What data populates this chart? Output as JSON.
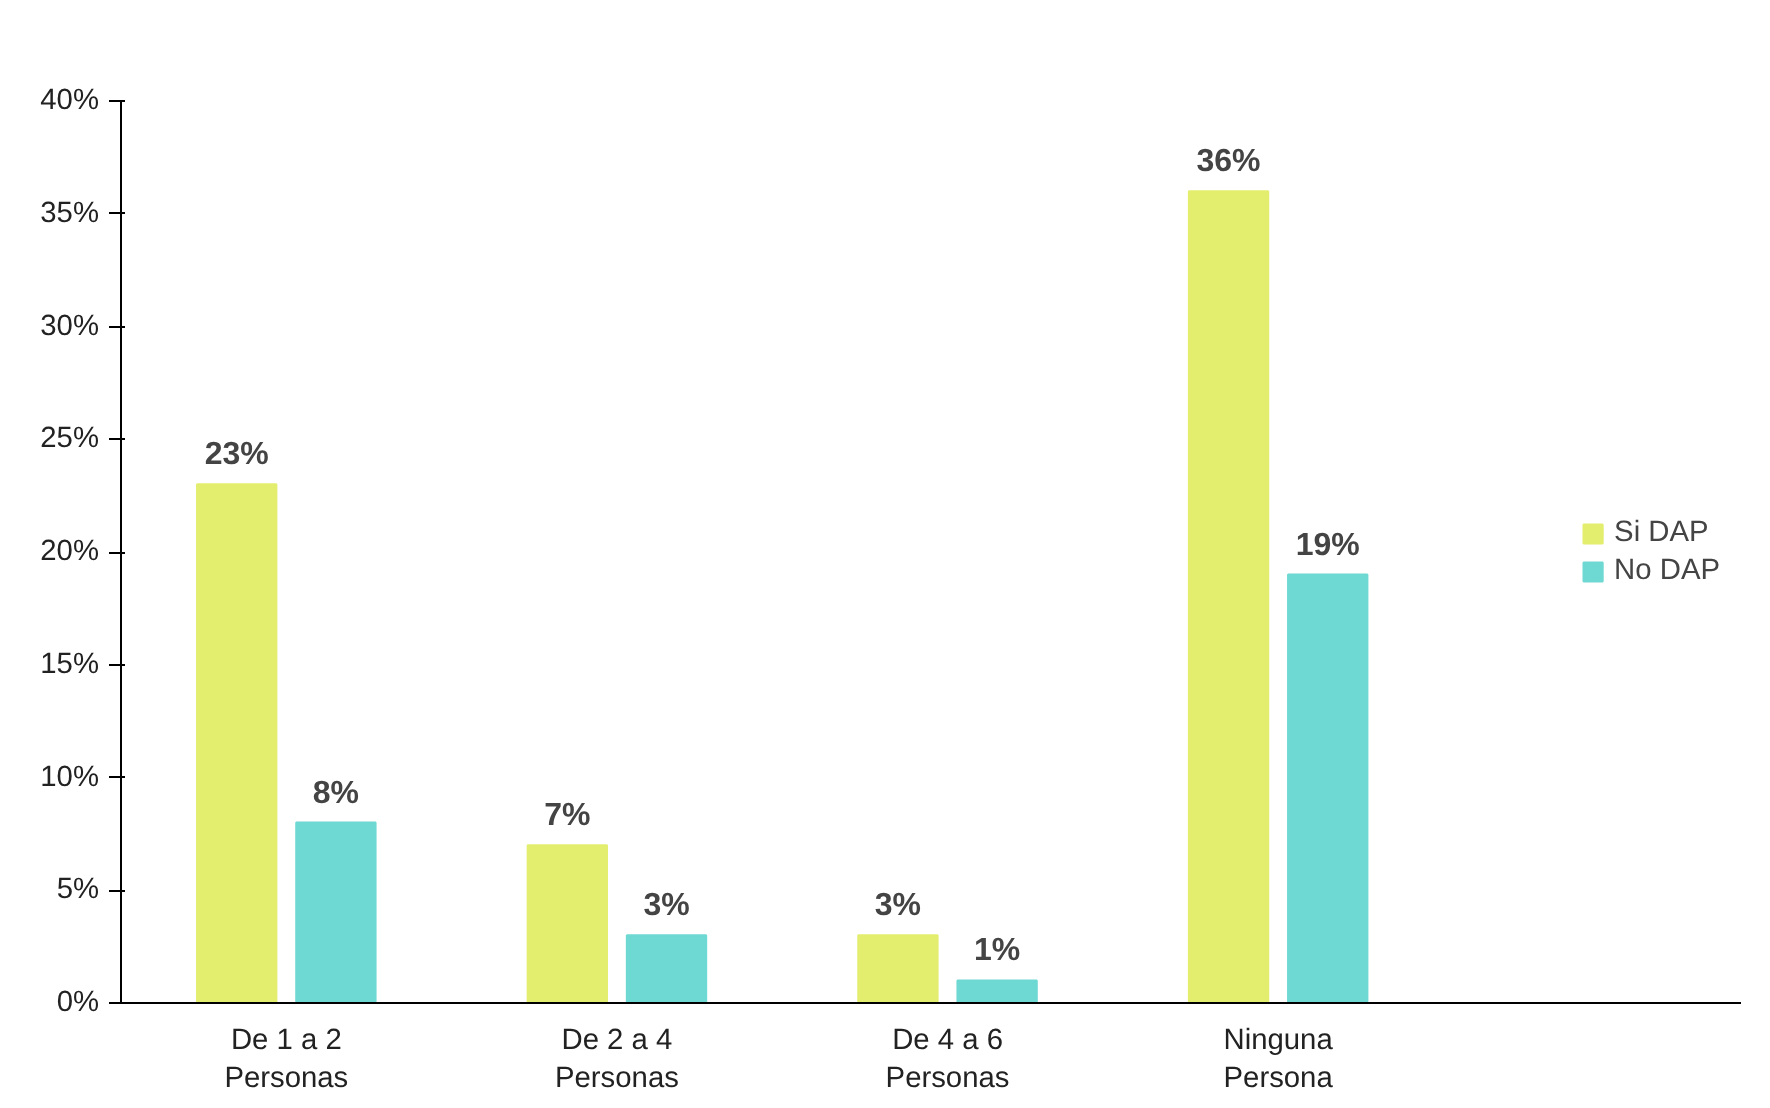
{
  "chart_data": {
    "type": "bar",
    "categories": [
      "De 1 a 2\nPersonas",
      "De 2 a 4\nPersonas",
      "De 4 a 6\nPersonas",
      "Ninguna\nPersona"
    ],
    "series": [
      {
        "name": "Si DAP",
        "color": "#e3ee6e",
        "values": [
          23,
          7,
          3,
          36
        ],
        "value_labels": [
          "23%",
          "7%",
          "3%",
          "36%"
        ]
      },
      {
        "name": "No DAP",
        "color": "#6ed8d2",
        "values": [
          8,
          3,
          1,
          19
        ],
        "value_labels": [
          "8%",
          "3%",
          "1%",
          "19%"
        ]
      }
    ],
    "ylim": [
      0,
      40
    ],
    "yticks": [
      {
        "value": 0,
        "label": "0%"
      },
      {
        "value": 5,
        "label": "5%"
      },
      {
        "value": 10,
        "label": "10%"
      },
      {
        "value": 15,
        "label": "15%"
      },
      {
        "value": 20,
        "label": "20%"
      },
      {
        "value": 25,
        "label": "25%"
      },
      {
        "value": 30,
        "label": "30%"
      },
      {
        "value": 35,
        "label": "35%"
      },
      {
        "value": 40,
        "label": "40%"
      }
    ],
    "legend": "right",
    "grid": false
  }
}
